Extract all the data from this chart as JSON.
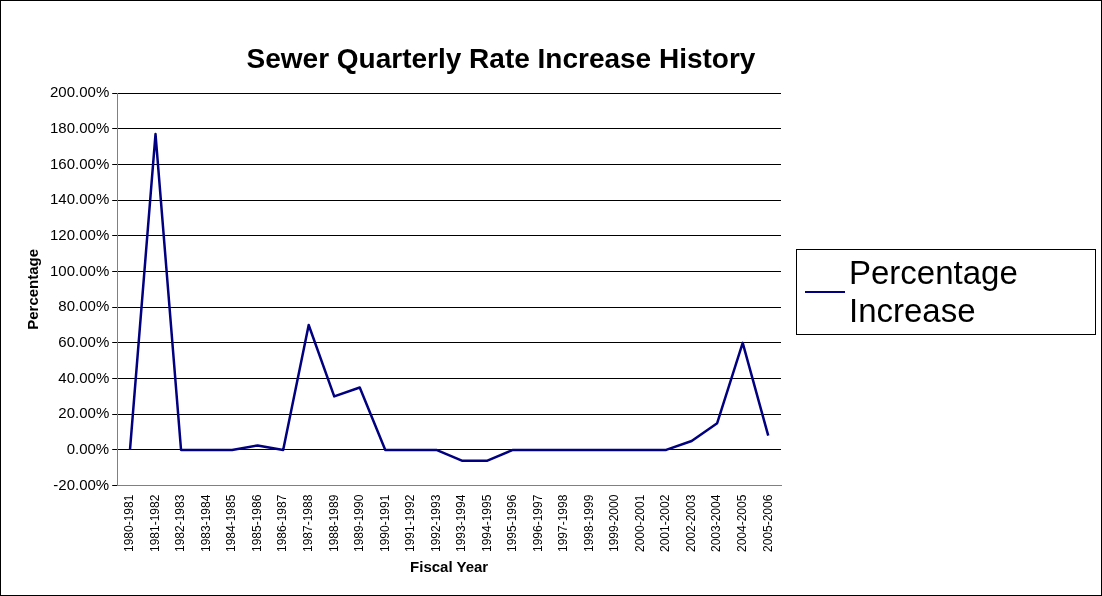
{
  "chart_data": {
    "type": "line",
    "title": "Sewer Quarterly Rate Increase History",
    "xlabel": "Fiscal Year",
    "ylabel": "Percentage",
    "categories": [
      "1980-1981",
      "1981-1982",
      "1982-1983",
      "1983-1984",
      "1984-1985",
      "1985-1986",
      "1986-1987",
      "1987-1988",
      "1988-1989",
      "1989-1990",
      "1990-1991",
      "1991-1992",
      "1992-1993",
      "1993-1994",
      "1994-1995",
      "1995-1996",
      "1996-1997",
      "1997-1998",
      "1998-1999",
      "1999-2000",
      "2000-2001",
      "2001-2002",
      "2002-2003",
      "2003-2004",
      "2004-2005",
      "2005-2006"
    ],
    "series": [
      {
        "name": "Percentage Increase",
        "color": "#000080",
        "values": [
          0,
          177,
          0,
          0,
          0,
          2.5,
          0,
          70,
          30,
          35,
          0,
          0,
          0,
          -6,
          -6,
          0,
          0,
          0,
          0,
          0,
          0,
          0,
          5,
          15,
          60,
          8
        ]
      }
    ],
    "ylim": [
      -20,
      200
    ],
    "yticks": [
      {
        "value": -20,
        "label": "-20.00%"
      },
      {
        "value": 0,
        "label": "0.00%"
      },
      {
        "value": 20,
        "label": "20.00%"
      },
      {
        "value": 40,
        "label": "40.00%"
      },
      {
        "value": 60,
        "label": "60.00%"
      },
      {
        "value": 80,
        "label": "80.00%"
      },
      {
        "value": 100,
        "label": "100.00%"
      },
      {
        "value": 120,
        "label": "120.00%"
      },
      {
        "value": 140,
        "label": "140.00%"
      },
      {
        "value": 160,
        "label": "160.00%"
      },
      {
        "value": 180,
        "label": "180.00%"
      },
      {
        "value": 200,
        "label": "200.00%"
      }
    ],
    "grid": "y",
    "legend": "right",
    "marker": "none",
    "line_style": "solid"
  }
}
